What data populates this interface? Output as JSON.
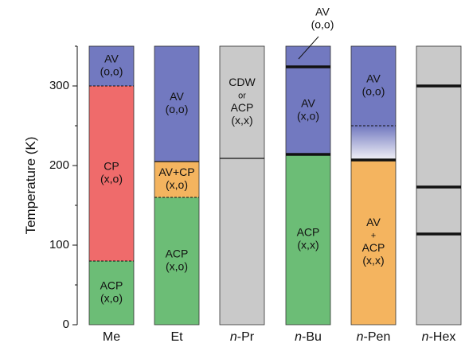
{
  "chart_data": {
    "type": "bar",
    "ylabel": "Temperature (K)",
    "ylim": [
      0,
      350
    ],
    "yticks": [
      "0",
      "100",
      "200",
      "300"
    ],
    "categories": [
      {
        "prefix": "",
        "name": "Me"
      },
      {
        "prefix": "",
        "name": "Et"
      },
      {
        "prefix": "n",
        "name": "-Pr"
      },
      {
        "prefix": "n",
        "name": "-Bu"
      },
      {
        "prefix": "n",
        "name": "-Pen"
      },
      {
        "prefix": "n",
        "name": "-Hex"
      }
    ],
    "colors": {
      "AV": "#7279c0",
      "CP": "#ef6b6b",
      "ACP": "#6cbd76",
      "AV_ACP": "#f4b45f",
      "CDW_ACP": "#c9c9c9"
    },
    "segments": [
      {
        "cat": 0,
        "from": 300,
        "to": 350,
        "phase": "AV",
        "label": [
          "AV",
          "(o,o)"
        ],
        "boundary": "dashed"
      },
      {
        "cat": 0,
        "from": 80,
        "to": 300,
        "phase": "CP",
        "label": [
          "CP",
          "(x,o)"
        ],
        "boundary": "dashed"
      },
      {
        "cat": 0,
        "from": 0,
        "to": 80,
        "phase": "ACP",
        "label": [
          "ACP",
          "(x,o)"
        ],
        "boundary": "none"
      },
      {
        "cat": 1,
        "from": 205,
        "to": 350,
        "phase": "AV",
        "label": [
          "AV",
          "(o,o)"
        ],
        "boundary": "solid"
      },
      {
        "cat": 1,
        "from": 160,
        "to": 205,
        "phase": "AV_ACP",
        "label": [
          "AV+CP",
          "(x,o)"
        ],
        "boundary": "dashed"
      },
      {
        "cat": 1,
        "from": 0,
        "to": 160,
        "phase": "ACP",
        "label": [
          "ACP",
          "(x,o)"
        ],
        "boundary": "none"
      },
      {
        "cat": 2,
        "from": 209,
        "to": 350,
        "phase": "CDW_ACP",
        "label": [
          "CDW",
          "or",
          "ACP",
          "(x,x)"
        ],
        "boundary": "solid"
      },
      {
        "cat": 2,
        "from": 0,
        "to": 209,
        "phase": "CDW_ACP",
        "label": [],
        "boundary": "none"
      },
      {
        "cat": 3,
        "from": 324,
        "to": 350,
        "phase": "AV",
        "label": [],
        "boundary": "thick"
      },
      {
        "cat": 3,
        "from": 214,
        "to": 324,
        "phase": "AV",
        "label": [
          "AV",
          "(x,o)"
        ],
        "boundary": "thick"
      },
      {
        "cat": 3,
        "from": 0,
        "to": 214,
        "phase": "ACP",
        "label": [
          "ACP",
          "(x,x)"
        ],
        "boundary": "none"
      },
      {
        "cat": 4,
        "from": 250,
        "to": 350,
        "phase": "AV",
        "label": [
          "AV",
          "(o,o)"
        ],
        "boundary": "dashed"
      },
      {
        "cat": 4,
        "from": 207,
        "to": 250,
        "phase": "gradient",
        "label": [],
        "boundary": "thick"
      },
      {
        "cat": 4,
        "from": 0,
        "to": 207,
        "phase": "AV_ACP",
        "label": [
          "AV",
          "+",
          "ACP",
          "(x,x)"
        ],
        "boundary": "none"
      },
      {
        "cat": 5,
        "from": 0,
        "to": 350,
        "phase": "CDW_ACP",
        "label": [],
        "boundary": "none"
      }
    ],
    "transitions": [
      {
        "cat": 5,
        "value": 300,
        "style": "thick"
      },
      {
        "cat": 5,
        "value": 173,
        "style": "thick"
      },
      {
        "cat": 5,
        "value": 114,
        "style": "thick"
      }
    ],
    "callout": {
      "cat": 3,
      "value": 337,
      "label": [
        "AV",
        "(o,o)"
      ]
    }
  }
}
